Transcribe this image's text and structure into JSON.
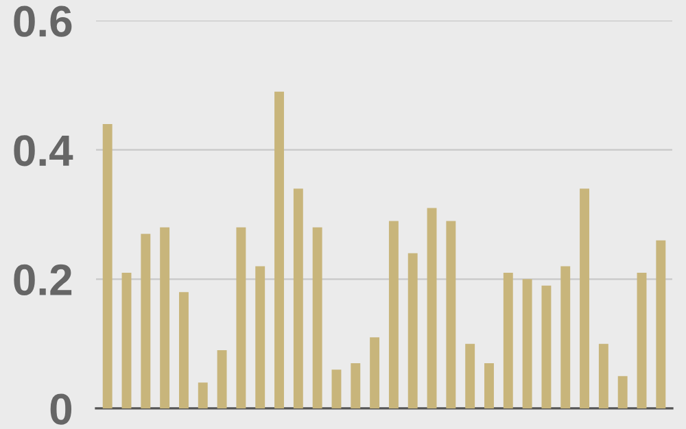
{
  "chart_data": {
    "type": "bar",
    "categories": [
      null,
      null,
      null,
      null,
      null,
      null,
      null,
      null,
      null,
      null,
      null,
      null,
      null,
      null,
      null,
      null,
      null,
      null,
      null,
      null,
      null,
      null,
      null,
      null,
      null,
      null,
      null,
      null,
      null,
      null
    ],
    "values": [
      0.44,
      0.21,
      0.27,
      0.28,
      0.18,
      0.04,
      0.09,
      0.28,
      0.22,
      0.49,
      0.34,
      0.28,
      0.06,
      0.07,
      0.11,
      0.29,
      0.24,
      0.31,
      0.29,
      0.1,
      0.07,
      0.21,
      0.2,
      0.19,
      0.22,
      0.34,
      0.1,
      0.05,
      0.21,
      0.26
    ],
    "color": "#c8b57b",
    "ylim": [
      0,
      0.6
    ],
    "yticks": [
      {
        "value": 0,
        "label": "0"
      },
      0.2,
      0.4,
      0.6
    ],
    "grid": "y",
    "tick_labels": "y"
  }
}
